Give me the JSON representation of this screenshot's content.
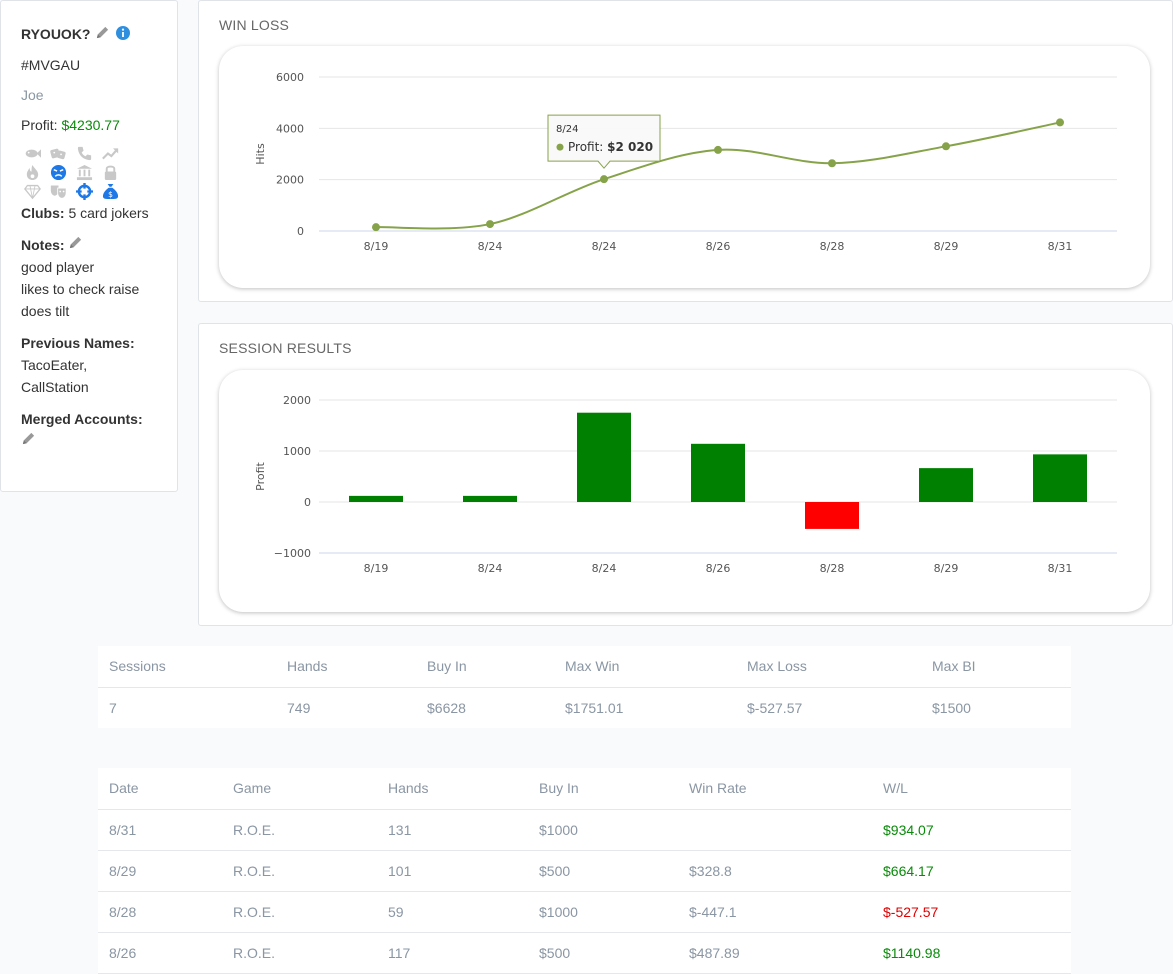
{
  "player": {
    "name": "RYOUOK?",
    "tag": "#MVGAU",
    "alias": "Joe",
    "profit_label": "Profit:",
    "profit_value": "$4230.77",
    "icons": [
      {
        "name": "fish-icon",
        "color": "#c8c8c8"
      },
      {
        "name": "dice-icon",
        "color": "#c8c8c8"
      },
      {
        "name": "phone-icon",
        "color": "#c8c8c8"
      },
      {
        "name": "trend-up-icon",
        "color": "#c8c8c8"
      },
      {
        "name": "fire-icon",
        "color": "#c8c8c8"
      },
      {
        "name": "angry-face-icon",
        "color": "#1e78e6"
      },
      {
        "name": "bank-icon",
        "color": "#c8c8c8"
      },
      {
        "name": "lock-icon",
        "color": "#c8c8c8"
      },
      {
        "name": "diamond-icon",
        "color": "#c8c8c8"
      },
      {
        "name": "masks-icon",
        "color": "#c8c8c8"
      },
      {
        "name": "crosshair-icon",
        "color": "#1e78e6"
      },
      {
        "name": "money-bag-icon",
        "color": "#1e78e6"
      }
    ],
    "clubs_label": "Clubs:",
    "clubs_value": "5 card jokers",
    "notes_label": "Notes:",
    "notes": [
      "good player",
      "likes to check raise",
      "does tilt"
    ],
    "previous_names_label": "Previous Names:",
    "previous_names": [
      "TacoEater,",
      "CallStation"
    ],
    "merged_accounts_label": "Merged Accounts:"
  },
  "win_loss": {
    "title": "WIN LOSS",
    "tooltip": {
      "date": "8/24",
      "label": "Profit:",
      "value": "$2 020"
    }
  },
  "session_results": {
    "title": "SESSION RESULTS"
  },
  "chart_data": [
    {
      "type": "line",
      "categories": [
        "8/19",
        "8/24",
        "8/24",
        "8/26",
        "8/28",
        "8/29",
        "8/31"
      ],
      "series": [
        {
          "name": "Profit",
          "values": [
            150,
            270,
            2020,
            3160,
            2640,
            3300,
            4230
          ],
          "color": "#86a34a"
        }
      ],
      "title": "WIN LOSS",
      "ylabel": "Hits",
      "ylim": [
        0,
        6000
      ],
      "yticks": [
        "6000",
        "4000",
        "2000",
        "0"
      ],
      "grid": true
    },
    {
      "type": "bar",
      "categories": [
        "8/19",
        "8/24",
        "8/24",
        "8/26",
        "8/28",
        "8/29",
        "8/31"
      ],
      "values": [
        120,
        120,
        1751.01,
        1140.98,
        -527.57,
        664.17,
        934.07
      ],
      "title": "SESSION RESULTS",
      "ylabel": "Profit",
      "ylim": [
        -1000,
        2000
      ],
      "yticks": [
        "2000",
        "1000",
        "0",
        "−1000"
      ],
      "positive_color": "#008000",
      "negative_color": "#ff0000",
      "grid": true
    }
  ],
  "summary": {
    "headers": [
      "Sessions",
      "Hands",
      "Buy In",
      "Max Win",
      "Max Loss",
      "Max BI"
    ],
    "values": [
      "7",
      "749",
      "$6628",
      "$1751.01",
      "$-527.57",
      "$1500"
    ]
  },
  "sessions": {
    "headers": [
      "Date",
      "Game",
      "Hands",
      "Buy In",
      "Win Rate",
      "W/L"
    ],
    "rows": [
      [
        "8/31",
        "R.O.E.",
        "131",
        "$1000",
        "",
        "$934.07"
      ],
      [
        "8/29",
        "R.O.E.",
        "101",
        "$500",
        "$328.8",
        "$664.17"
      ],
      [
        "8/28",
        "R.O.E.",
        "59",
        "$1000",
        "$-447.1",
        "$-527.57"
      ],
      [
        "8/26",
        "R.O.E.",
        "117",
        "$500",
        "$487.89",
        "$1140.98"
      ]
    ]
  }
}
